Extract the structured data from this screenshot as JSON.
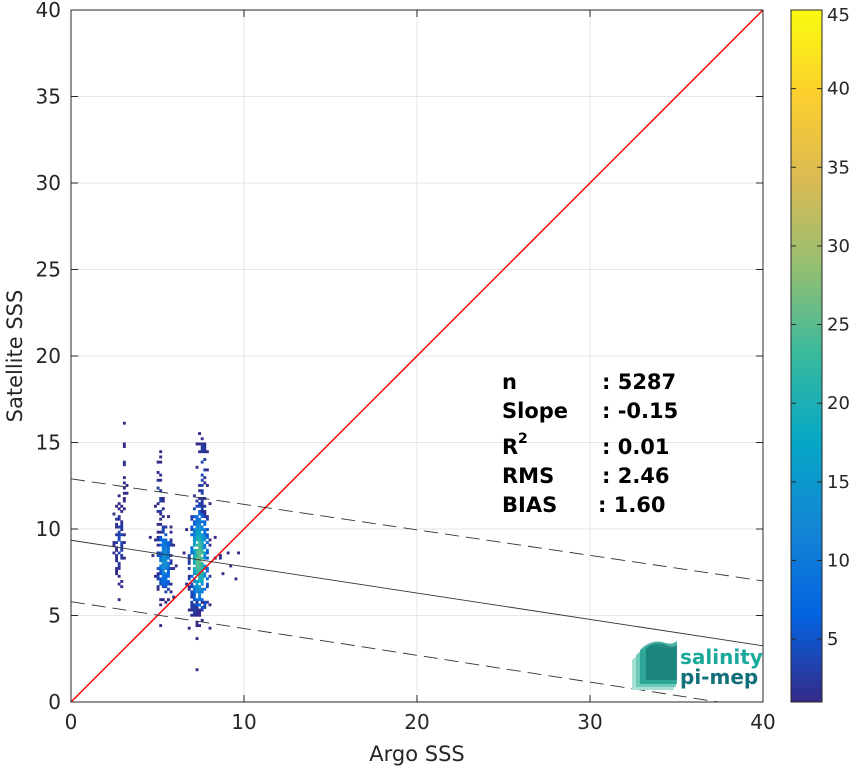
{
  "chart_data": {
    "type": "heatmap",
    "xlabel": "Argo SSS",
    "ylabel": "Satellite SSS",
    "xlim": [
      0,
      40
    ],
    "ylim": [
      0,
      40
    ],
    "xticks": [
      0,
      10,
      20,
      30,
      40
    ],
    "yticks": [
      0,
      5,
      10,
      15,
      20,
      25,
      30,
      35,
      40
    ],
    "grid": true,
    "colorbar": {
      "colormap": "parula",
      "range": [
        1,
        45
      ],
      "ticks": [
        5,
        10,
        15,
        20,
        25,
        30,
        35,
        40,
        45
      ]
    },
    "lines": [
      {
        "kind": "identity",
        "color": "#ff0000",
        "x": [
          0,
          40
        ],
        "y": [
          0,
          40
        ]
      },
      {
        "kind": "regression",
        "color": "#333333",
        "x": [
          0,
          40
        ],
        "y": [
          9.35,
          3.25
        ]
      },
      {
        "kind": "regression-upper",
        "color": "#333333",
        "dash": true,
        "x": [
          0,
          40
        ],
        "y": [
          12.9,
          7.0
        ]
      },
      {
        "kind": "regression-lower",
        "color": "#333333",
        "dash": true,
        "x": [
          0,
          40
        ],
        "y": [
          5.8,
          -0.4
        ]
      }
    ],
    "clusters": [
      {
        "x": 2.8,
        "y": 9.3,
        "sx": 0.15,
        "sy": 1.3,
        "count": 70,
        "peak": 4
      },
      {
        "x": 3.1,
        "y": 13.2,
        "sx": 0.06,
        "sy": 1.2,
        "count": 14,
        "peak": 2
      },
      {
        "x": 5.4,
        "y": 8.2,
        "sx": 0.22,
        "sy": 1.1,
        "count": 200,
        "peak": 14
      },
      {
        "x": 5.1,
        "y": 11.6,
        "sx": 0.1,
        "sy": 1.2,
        "count": 30,
        "peak": 3
      },
      {
        "x": 7.4,
        "y": 8.3,
        "sx": 0.28,
        "sy": 1.6,
        "count": 380,
        "peak": 26
      },
      {
        "x": 7.6,
        "y": 13.2,
        "sx": 0.12,
        "sy": 1.6,
        "count": 50,
        "peak": 4
      },
      {
        "x": 7.1,
        "y": 5.6,
        "sx": 0.2,
        "sy": 0.6,
        "count": 40,
        "peak": 3
      },
      {
        "x": 8.8,
        "y": 8.1,
        "sx": 0.5,
        "sy": 0.5,
        "count": 10,
        "peak": 2
      }
    ],
    "annotations": {
      "n_label": "n",
      "n_value": ": 5287",
      "slope_label": "Slope",
      "slope_value": ": -0.15",
      "r2_label": "R",
      "r2_sup": "2",
      "r2_value": ": 0.01",
      "rms_label": "RMS",
      "rms_value": ": 2.46",
      "bias_label": "BIAS",
      "bias_value": ": 1.60"
    }
  },
  "logo": {
    "line1": "salinity",
    "line2": "pi-mep",
    "color1": "#1aa89b",
    "color2": "#11707a"
  }
}
